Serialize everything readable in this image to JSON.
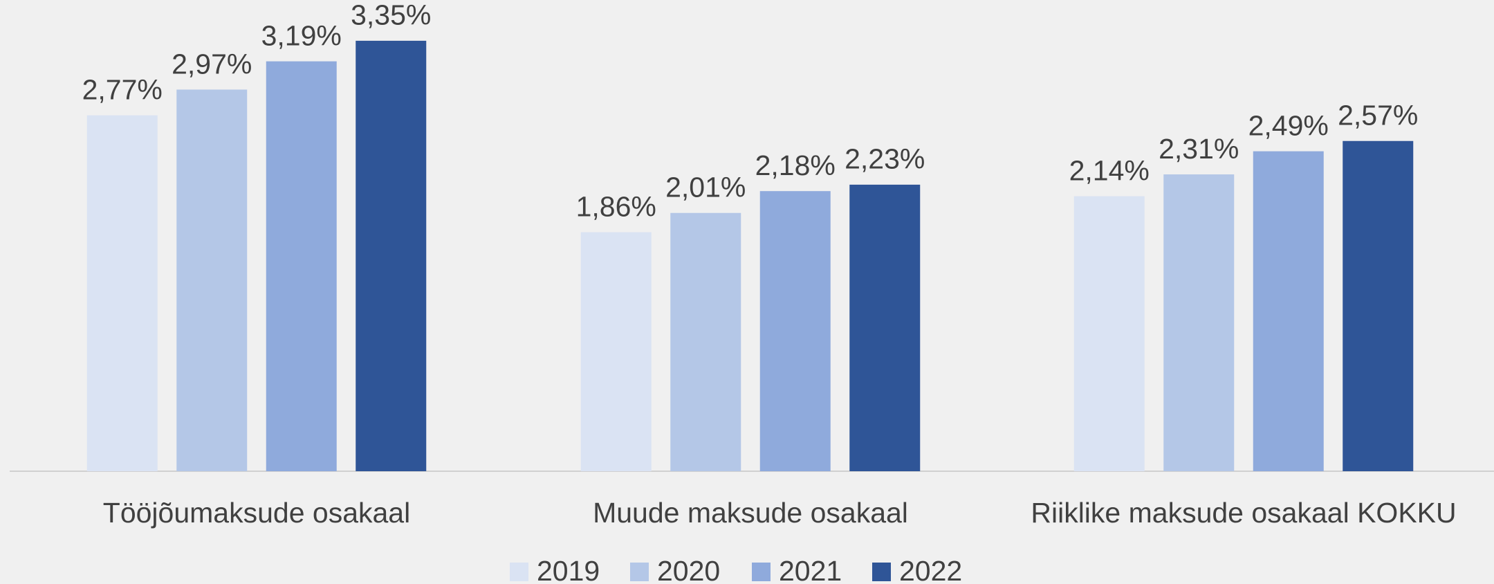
{
  "chart_data": {
    "type": "bar",
    "categories": [
      "Tööjõumaksude osakaal",
      "Muude maksude osakaal",
      "Riiklike maksude osakaal KOKKU"
    ],
    "series": [
      {
        "name": "2019",
        "color": "#dae3f3",
        "values": [
          2.77,
          1.86,
          2.14
        ],
        "value_labels": [
          "2,77%",
          "1,86%",
          "2,14%"
        ]
      },
      {
        "name": "2020",
        "color": "#b4c7e7",
        "values": [
          2.97,
          2.01,
          2.31
        ],
        "value_labels": [
          "2,97%",
          "2,01%",
          "2,31%"
        ]
      },
      {
        "name": "2021",
        "color": "#8faadc",
        "values": [
          3.19,
          2.18,
          2.49
        ],
        "value_labels": [
          "3,19%",
          "2,18%",
          "2,49%"
        ]
      },
      {
        "name": "2022",
        "color": "#2f5597",
        "values": [
          3.35,
          2.23,
          2.57
        ],
        "value_labels": [
          "3,35%",
          "2,23%",
          "2,57%"
        ]
      }
    ],
    "legend": "bottom"
  }
}
